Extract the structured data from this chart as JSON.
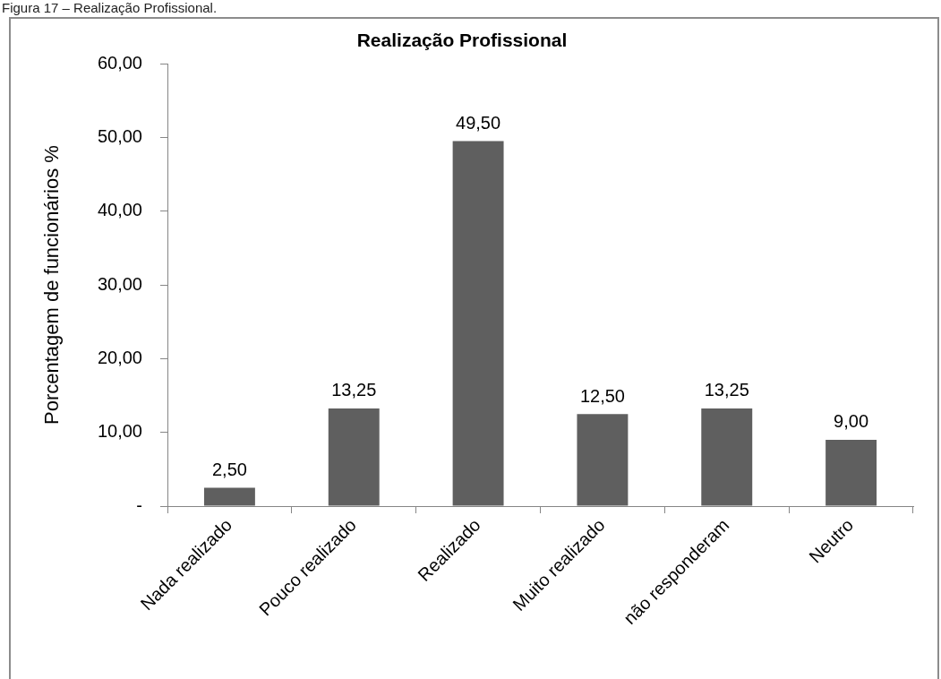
{
  "chart_data": {
    "type": "bar",
    "title": "Realização Profissional",
    "ylabel": "Porcentagem de funcionários %",
    "annotations": [
      "Figura 17 – Realização Profissional."
    ],
    "categories": [
      "Nada realizado",
      "Pouco realizado",
      "Realizado",
      "Muito realizado",
      "não responderam",
      "Neutro"
    ],
    "values": [
      2.5,
      13.25,
      49.5,
      12.5,
      13.25,
      9.0
    ],
    "value_labels": [
      "2,50",
      "13,25",
      "49,50",
      "12,50",
      "13,25",
      "9,00"
    ],
    "color": "#5f5f5f",
    "ylim": [
      0,
      60
    ],
    "yticks": [
      {
        "value": 0,
        "label": "-"
      },
      {
        "value": 10,
        "label": "10,00"
      },
      {
        "value": 20,
        "label": "20,00"
      },
      {
        "value": 30,
        "label": "30,00"
      },
      {
        "value": 40,
        "label": "40,00"
      },
      {
        "value": 50,
        "label": "50,00"
      },
      {
        "value": 60,
        "label": "60,00"
      }
    ],
    "legend": false
  }
}
